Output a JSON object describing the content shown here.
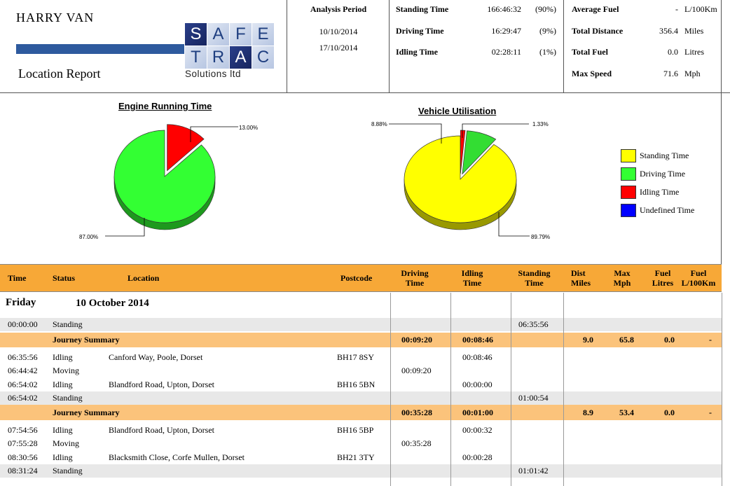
{
  "header": {
    "vehicle_name": "HARRY  VAN",
    "report_title": "Location Report",
    "logo": {
      "letters": [
        "S",
        "A",
        "F",
        "E",
        "T",
        "R",
        "A",
        "C"
      ],
      "subtitle": "Solutions ltd"
    },
    "period": {
      "label": "Analysis Period",
      "from": "10/10/2014",
      "to": "17/10/2014"
    },
    "times": [
      {
        "label": "Standing Time",
        "value": "166:46:32",
        "pct": "(90%)"
      },
      {
        "label": "Driving Time",
        "value": "16:29:47",
        "pct": "(9%)"
      },
      {
        "label": "Idling Time",
        "value": "02:28:11",
        "pct": "(1%)"
      }
    ],
    "totals": [
      {
        "label": "Average Fuel",
        "value": "-",
        "unit": "L/100Km"
      },
      {
        "label": "Total Distance",
        "value": "356.4",
        "unit": "Miles"
      },
      {
        "label": "Total Fuel",
        "value": "0.0",
        "unit": "Litres"
      },
      {
        "label": "Max Speed",
        "value": "71.6",
        "unit": "Mph"
      }
    ]
  },
  "chart_data": [
    {
      "type": "pie",
      "title": "Engine Running Time",
      "slices": [
        {
          "label": "Idling",
          "value": 13.0,
          "display": "13.00%",
          "color": "#ff0000"
        },
        {
          "label": "Driving",
          "value": 87.0,
          "display": "87.00%",
          "color": "#33ff33"
        }
      ]
    },
    {
      "type": "pie",
      "title": "Vehicle Utilisation",
      "slices": [
        {
          "label": "Standing Time",
          "value": 89.79,
          "display": "89.79%",
          "color": "#ffff00"
        },
        {
          "label": "Driving Time",
          "value": 8.88,
          "display": "8.88%",
          "color": "#33dd33"
        },
        {
          "label": "Idling Time",
          "value": 1.33,
          "display": "1.33%",
          "color": "#ff0000"
        }
      ],
      "legend_placement": "right"
    }
  ],
  "legend": [
    {
      "label": "Standing Time",
      "color": "#ffff00"
    },
    {
      "label": "Driving Time",
      "color": "#33ff33"
    },
    {
      "label": "Idling Time",
      "color": "#ff0000"
    },
    {
      "label": "Undefined Time",
      "color": "#0000ff"
    }
  ],
  "table": {
    "headers": {
      "time": "Time",
      "status": "Status",
      "location": "Location",
      "postcode": "Postcode",
      "driving1": "Driving",
      "driving2": "Time",
      "idling1": "Idling",
      "idling2": "Time",
      "standing1": "Standing",
      "standing2": "Time",
      "dist1": "Dist",
      "dist2": "Miles",
      "max1": "Max",
      "max2": "Mph",
      "fuel1": "Fuel",
      "fuel2": "Litres",
      "fuelk1": "Fuel",
      "fuelk2": "L/100Km"
    },
    "day": {
      "name": "Friday",
      "date": "10 October 2014"
    },
    "rows": [
      {
        "kind": "gray",
        "time": "00:00:00",
        "status": "Standing",
        "location": "",
        "postcode": "",
        "driving": "",
        "idling": "",
        "standing": "06:35:56",
        "dist": "",
        "max": "",
        "fuel": "",
        "fuelk": ""
      },
      {
        "kind": "summary",
        "time": "",
        "status": "Journey Summary",
        "location": "",
        "postcode": "",
        "driving": "00:09:20",
        "idling": "00:08:46",
        "standing": "",
        "dist": "9.0",
        "max": "65.8",
        "fuel": "0.0",
        "fuelk": "-"
      },
      {
        "kind": "plain",
        "time": "06:35:56",
        "status": "Idling",
        "location": "Canford Way, Poole, Dorset",
        "postcode": "BH17 8SY",
        "driving": "",
        "idling": "00:08:46",
        "standing": "",
        "dist": "",
        "max": "",
        "fuel": "",
        "fuelk": ""
      },
      {
        "kind": "plain",
        "time": "06:44:42",
        "status": "Moving",
        "location": "",
        "postcode": "",
        "driving": "00:09:20",
        "idling": "",
        "standing": "",
        "dist": "",
        "max": "",
        "fuel": "",
        "fuelk": ""
      },
      {
        "kind": "plain",
        "time": "06:54:02",
        "status": "Idling",
        "location": "Blandford Road, Upton, Dorset",
        "postcode": "BH16 5BN",
        "driving": "",
        "idling": "00:00:00",
        "standing": "",
        "dist": "",
        "max": "",
        "fuel": "",
        "fuelk": ""
      },
      {
        "kind": "gray",
        "time": "06:54:02",
        "status": "Standing",
        "location": "",
        "postcode": "",
        "driving": "",
        "idling": "",
        "standing": "01:00:54",
        "dist": "",
        "max": "",
        "fuel": "",
        "fuelk": ""
      },
      {
        "kind": "summary",
        "time": "",
        "status": "Journey Summary",
        "location": "",
        "postcode": "",
        "driving": "00:35:28",
        "idling": "00:01:00",
        "standing": "",
        "dist": "8.9",
        "max": "53.4",
        "fuel": "0.0",
        "fuelk": "-"
      },
      {
        "kind": "plain",
        "time": "07:54:56",
        "status": "Idling",
        "location": "Blandford Road, Upton, Dorset",
        "postcode": "BH16 5BP",
        "driving": "",
        "idling": "00:00:32",
        "standing": "",
        "dist": "",
        "max": "",
        "fuel": "",
        "fuelk": ""
      },
      {
        "kind": "plain",
        "time": "07:55:28",
        "status": "Moving",
        "location": "",
        "postcode": "",
        "driving": "00:35:28",
        "idling": "",
        "standing": "",
        "dist": "",
        "max": "",
        "fuel": "",
        "fuelk": ""
      },
      {
        "kind": "plain",
        "time": "08:30:56",
        "status": "Idling",
        "location": "Blacksmith Close, Corfe Mullen, Dorset",
        "postcode": "BH21 3TY",
        "driving": "",
        "idling": "00:00:28",
        "standing": "",
        "dist": "",
        "max": "",
        "fuel": "",
        "fuelk": ""
      },
      {
        "kind": "gray",
        "time": "08:31:24",
        "status": "Standing",
        "location": "",
        "postcode": "",
        "driving": "",
        "idling": "",
        "standing": "01:01:42",
        "dist": "",
        "max": "",
        "fuel": "",
        "fuelk": ""
      }
    ]
  }
}
